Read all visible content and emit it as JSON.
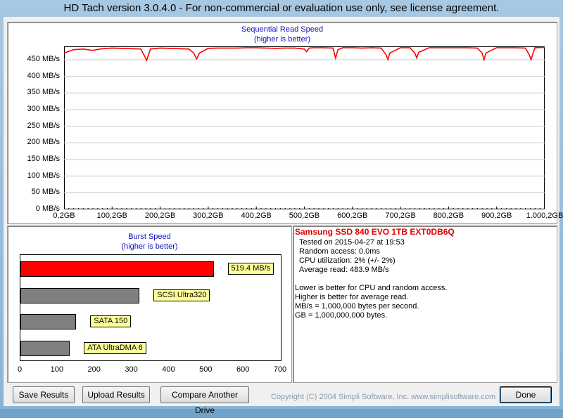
{
  "window": {
    "title": "HD Tach version 3.0.4.0  - For non-commercial or evaluation use only, see license agreement."
  },
  "seq_chart": {
    "title": "Sequential Read Speed",
    "subtitle": "(higher is better)",
    "y_tick_labels": [
      "0 MB/s",
      "50 MB/s",
      "100 MB/s",
      "150 MB/s",
      "200 MB/s",
      "250 MB/s",
      "300 MB/s",
      "350 MB/s",
      "400 MB/s",
      "450 MB/s"
    ],
    "x_tick_labels": [
      "0,2GB",
      "100,2GB",
      "200,2GB",
      "300,2GB",
      "400,2GB",
      "500,2GB",
      "600,2GB",
      "700,2GB",
      "800,2GB",
      "900,2GB",
      "1.000,2GB"
    ],
    "line_color": "#ff0000"
  },
  "burst_chart": {
    "title": "Burst Speed",
    "subtitle": "(higher is better)",
    "axis_labels": [
      "0",
      "100",
      "200",
      "300",
      "400",
      "500",
      "600",
      "700"
    ],
    "bars": [
      {
        "label": "519.4 MB/s",
        "color": "#ff0000"
      },
      {
        "label": "SCSI Ultra320",
        "color": "#808080"
      },
      {
        "label": "SATA 150",
        "color": "#808080"
      },
      {
        "label": "ATA UltraDMA 6",
        "color": "#808080"
      }
    ]
  },
  "chart_data": [
    {
      "type": "line",
      "title": "Sequential Read Speed",
      "subtitle": "(higher is better)",
      "xlim": [
        0.2,
        1000.2
      ],
      "ylim": [
        0,
        490
      ],
      "grid": true,
      "x": [
        0.2,
        20,
        40,
        60,
        80,
        100,
        120,
        140,
        160,
        168,
        172,
        176,
        180,
        200,
        220,
        240,
        260,
        270,
        276,
        282,
        300,
        320,
        340,
        360,
        380,
        400,
        420,
        440,
        460,
        480,
        500,
        505,
        510,
        520,
        540,
        560,
        565,
        570,
        580,
        600,
        620,
        640,
        660,
        670,
        674,
        678,
        700,
        720,
        730,
        734,
        738,
        760,
        780,
        800,
        820,
        840,
        860,
        870,
        874,
        878,
        900,
        920,
        940,
        960,
        968,
        972,
        976,
        980,
        1000.2
      ],
      "y": [
        470,
        480,
        482,
        478,
        483,
        485,
        484,
        483,
        482,
        460,
        448,
        465,
        482,
        485,
        484,
        483,
        482,
        470,
        452,
        470,
        484,
        485,
        485,
        485,
        486,
        486,
        485,
        484,
        485,
        485,
        482,
        474,
        485,
        486,
        486,
        485,
        455,
        480,
        486,
        486,
        485,
        486,
        485,
        465,
        450,
        470,
        486,
        486,
        470,
        455,
        472,
        486,
        486,
        486,
        486,
        486,
        485,
        470,
        450,
        470,
        486,
        486,
        486,
        485,
        465,
        450,
        470,
        486,
        487
      ]
    },
    {
      "type": "bar",
      "title": "Burst Speed",
      "subtitle": "(higher is better)",
      "orientation": "horizontal",
      "categories": [
        "519.4 MB/s",
        "SCSI Ultra320",
        "SATA 150",
        "ATA UltraDMA 6"
      ],
      "values": [
        519.4,
        320,
        150,
        133
      ],
      "xlim": [
        0,
        700
      ]
    }
  ],
  "info": {
    "drive_name": "Samsung SSD 840 EVO 1TB EXT0DB6Q",
    "tested_on": "Tested on 2015-04-27 at 19:53",
    "random_access": "Random access: 0.0ms",
    "cpu_utilization": "CPU utilization: 2% (+/- 2%)",
    "average_read": "Average read: 483.9 MB/s",
    "note1": "Lower is better for CPU and random access.",
    "note2": "Higher is better for average read.",
    "note3": "MB/s = 1,000,000 bytes per second.",
    "note4": "GB = 1,000,000,000 bytes."
  },
  "buttons": {
    "save": "Save Results",
    "upload": "Upload Results",
    "compare": "Compare Another Drive",
    "done": "Done"
  },
  "copyright": "Copyright (C) 2004 Simpli Software, Inc. www.simplisoftware.com"
}
